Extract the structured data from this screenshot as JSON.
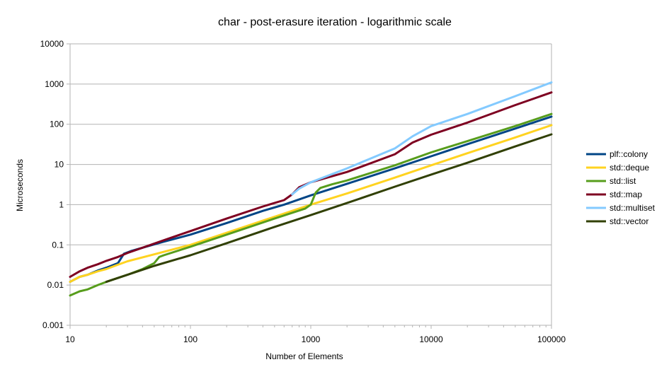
{
  "chart_data": {
    "type": "line",
    "title": "char - post-erasure iteration - logarithmic scale",
    "xlabel": "Number of Elements",
    "ylabel": "Microseconds",
    "x_scale": "log",
    "y_scale": "log",
    "xlim": [
      10,
      100000
    ],
    "ylim": [
      0.001,
      10000
    ],
    "x_ticks": [
      "10",
      "100",
      "1000",
      "10000",
      "100000"
    ],
    "y_ticks": [
      "0.001",
      "0.01",
      "0.1",
      "1",
      "10",
      "100",
      "1000",
      "10000"
    ],
    "grid": "horizontal",
    "legend_position": "right",
    "series": [
      {
        "name": "plf::colony",
        "color": "#004586",
        "points": [
          [
            10,
            0.012
          ],
          [
            12,
            0.016
          ],
          [
            14,
            0.018
          ],
          [
            17,
            0.023
          ],
          [
            20,
            0.027
          ],
          [
            25,
            0.035
          ],
          [
            28,
            0.06
          ],
          [
            32,
            0.07
          ],
          [
            40,
            0.085
          ],
          [
            60,
            0.12
          ],
          [
            100,
            0.18
          ],
          [
            200,
            0.35
          ],
          [
            400,
            0.7
          ],
          [
            600,
            1.0
          ],
          [
            1000,
            1.7
          ],
          [
            2000,
            3.3
          ],
          [
            5000,
            8
          ],
          [
            10000,
            16
          ],
          [
            20000,
            32
          ],
          [
            50000,
            78
          ],
          [
            100000,
            155
          ]
        ]
      },
      {
        "name": "std::deque",
        "color": "#ffd320",
        "points": [
          [
            10,
            0.012
          ],
          [
            12,
            0.016
          ],
          [
            14,
            0.018
          ],
          [
            17,
            0.022
          ],
          [
            20,
            0.025
          ],
          [
            25,
            0.032
          ],
          [
            30,
            0.039
          ],
          [
            50,
            0.058
          ],
          [
            100,
            0.1
          ],
          [
            200,
            0.2
          ],
          [
            500,
            0.5
          ],
          [
            1000,
            1.0
          ],
          [
            2000,
            1.9
          ],
          [
            5000,
            4.7
          ],
          [
            10000,
            9.5
          ],
          [
            20000,
            19
          ],
          [
            50000,
            47
          ],
          [
            100000,
            95
          ]
        ]
      },
      {
        "name": "std::list",
        "color": "#579d1c",
        "points": [
          [
            10,
            0.0055
          ],
          [
            12,
            0.007
          ],
          [
            14,
            0.0078
          ],
          [
            17,
            0.01
          ],
          [
            20,
            0.012
          ],
          [
            25,
            0.015
          ],
          [
            30,
            0.018
          ],
          [
            40,
            0.025
          ],
          [
            50,
            0.035
          ],
          [
            55,
            0.05
          ],
          [
            60,
            0.055
          ],
          [
            100,
            0.09
          ],
          [
            200,
            0.18
          ],
          [
            500,
            0.45
          ],
          [
            900,
            0.8
          ],
          [
            1000,
            1.0
          ],
          [
            1100,
            2.0
          ],
          [
            1200,
            2.6
          ],
          [
            1500,
            3.2
          ],
          [
            2000,
            4.0
          ],
          [
            5000,
            9.5
          ],
          [
            10000,
            20
          ],
          [
            20000,
            38
          ],
          [
            50000,
            90
          ],
          [
            100000,
            180
          ]
        ]
      },
      {
        "name": "std::map",
        "color": "#7e0021",
        "points": [
          [
            10,
            0.016
          ],
          [
            12,
            0.022
          ],
          [
            14,
            0.027
          ],
          [
            17,
            0.033
          ],
          [
            20,
            0.04
          ],
          [
            25,
            0.05
          ],
          [
            30,
            0.063
          ],
          [
            40,
            0.085
          ],
          [
            60,
            0.13
          ],
          [
            100,
            0.22
          ],
          [
            200,
            0.45
          ],
          [
            400,
            0.9
          ],
          [
            600,
            1.3
          ],
          [
            700,
            1.8
          ],
          [
            800,
            2.7
          ],
          [
            1000,
            3.6
          ],
          [
            2000,
            6.5
          ],
          [
            5000,
            18
          ],
          [
            7000,
            35
          ],
          [
            10000,
            55
          ],
          [
            20000,
            110
          ],
          [
            50000,
            300
          ],
          [
            100000,
            620
          ]
        ]
      },
      {
        "name": "std::multiset",
        "color": "#83caff",
        "points": [
          [
            700,
            1.8
          ],
          [
            800,
            2.5
          ],
          [
            1000,
            3.6
          ],
          [
            2000,
            8
          ],
          [
            5000,
            25
          ],
          [
            7000,
            50
          ],
          [
            10000,
            90
          ],
          [
            20000,
            180
          ],
          [
            50000,
            500
          ],
          [
            100000,
            1100
          ]
        ]
      },
      {
        "name": "std::vector",
        "color": "#314004",
        "points": [
          [
            20,
            0.012
          ],
          [
            30,
            0.018
          ],
          [
            50,
            0.03
          ],
          [
            100,
            0.055
          ],
          [
            200,
            0.11
          ],
          [
            500,
            0.28
          ],
          [
            1000,
            0.55
          ],
          [
            2000,
            1.1
          ],
          [
            5000,
            2.8
          ],
          [
            10000,
            5.6
          ],
          [
            20000,
            11
          ],
          [
            50000,
            28
          ],
          [
            100000,
            56
          ]
        ]
      }
    ]
  }
}
